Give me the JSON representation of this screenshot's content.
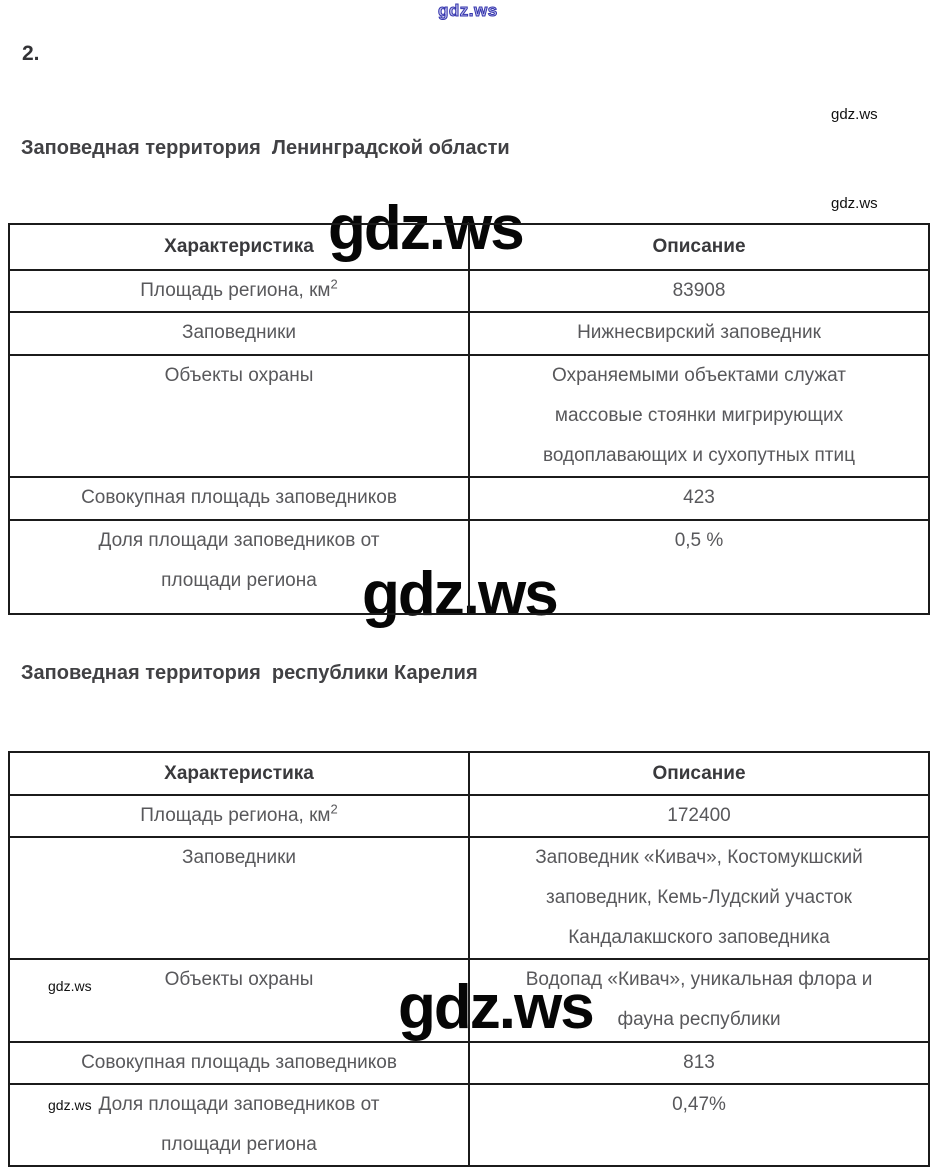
{
  "question_number": "2.",
  "watermarks": {
    "top_blue": "gdz.ws",
    "small_1": "gdz.ws",
    "small_2": "gdz.ws",
    "small_3": "gdz.ws",
    "small_4": "gdz.ws",
    "large_1": "gdz.ws",
    "large_2": "gdz.ws",
    "large_3": "gdz.ws"
  },
  "sections": [
    {
      "heading": "Заповедная территория  Ленинградской области",
      "table": {
        "headers": [
          "Характеристика",
          "Описание"
        ],
        "rows": [
          {
            "label": "Площадь региона, км",
            "label_sup": "2",
            "value": "83908"
          },
          {
            "label": "Заповедники",
            "value": "Нижнесвирский заповедник"
          },
          {
            "label": "Объекты охраны",
            "value": "Охраняемыми объектами служат\nмассовые стоянки мигрирующих\nводоплавающих и сухопутных птиц"
          },
          {
            "label": "Совокупная площадь заповедников",
            "value": "423"
          },
          {
            "label": "Доля площади заповедников от\nплощади региона",
            "value": "0,5 %"
          }
        ]
      }
    },
    {
      "heading": "Заповедная территория  республики Карелия",
      "table": {
        "headers": [
          "Характеристика",
          "Описание"
        ],
        "rows": [
          {
            "label": "Площадь региона, км",
            "label_sup": "2",
            "value": "172400"
          },
          {
            "label": "Заповедники",
            "value": "Заповедник «Кивач», Костомукшский\nзаповедник, Кемь-Лудский участок\nКандалакшского заповедника"
          },
          {
            "label": "Объекты охраны",
            "value": "Водопад «Кивач», уникальная флора и\nфауна республики"
          },
          {
            "label": "Совокупная площадь заповедников",
            "value": "813"
          },
          {
            "label": "Доля площади заповедников от\nплощади региона",
            "value": "0,47%"
          }
        ]
      }
    }
  ]
}
